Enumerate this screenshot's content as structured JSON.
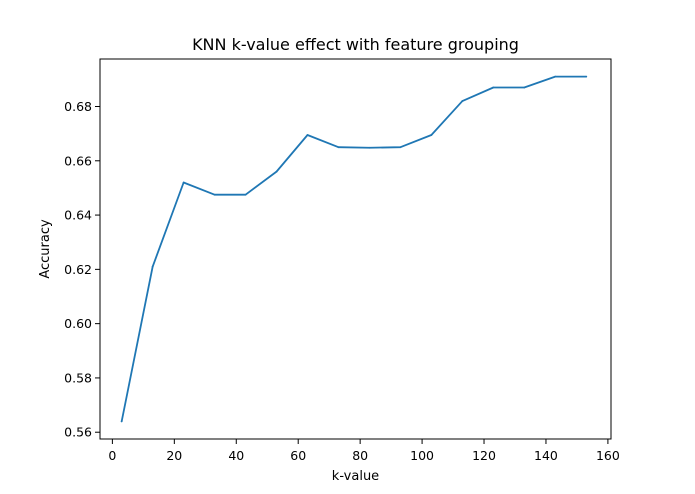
{
  "chart_data": {
    "type": "line",
    "title": "KNN k-value effect with feature grouping",
    "xlabel": "k-value",
    "ylabel": "Accuracy",
    "xlim": [
      -4,
      161
    ],
    "ylim": [
      0.5575,
      0.6975
    ],
    "xticks": [
      0,
      20,
      40,
      60,
      80,
      100,
      120,
      140,
      160
    ],
    "xtick_labels": [
      "0",
      "20",
      "40",
      "60",
      "80",
      "100",
      "120",
      "140",
      "160"
    ],
    "yticks": [
      0.56,
      0.58,
      0.6,
      0.62,
      0.64,
      0.66,
      0.68
    ],
    "ytick_labels": [
      "0.56",
      "0.58",
      "0.60",
      "0.62",
      "0.64",
      "0.66",
      "0.68"
    ],
    "grid": false,
    "series": [
      {
        "color": "#1f77b4",
        "x": [
          3,
          13,
          23,
          33,
          43,
          53,
          63,
          73,
          83,
          93,
          103,
          113,
          123,
          133,
          143,
          153
        ],
        "y": [
          0.564,
          0.621,
          0.652,
          0.6475,
          0.6475,
          0.656,
          0.6695,
          0.665,
          0.6648,
          0.665,
          0.6695,
          0.682,
          0.687,
          0.687,
          0.691,
          0.691
        ]
      }
    ]
  }
}
